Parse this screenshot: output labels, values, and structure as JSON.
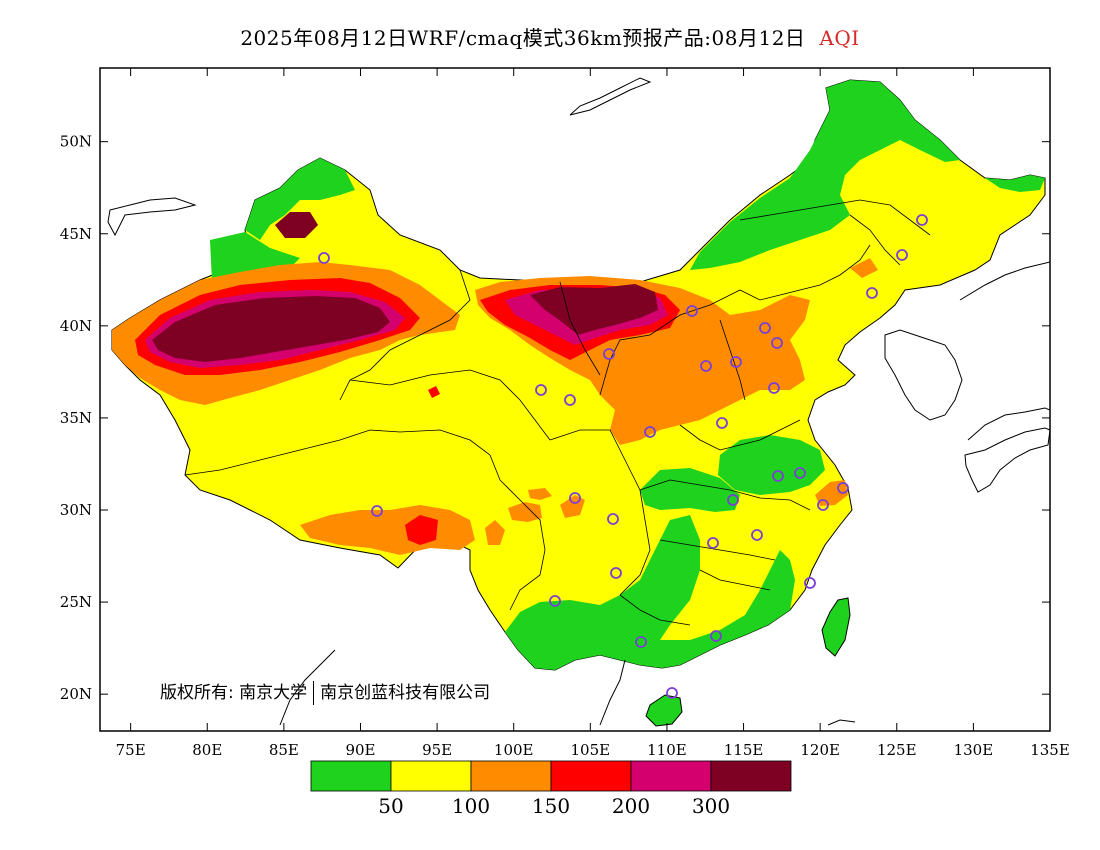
{
  "title": {
    "main": "2025年08月12日WRF/cmaq模式36km预报产品:08月12日",
    "variable": "AQI"
  },
  "map": {
    "lon_range": [
      73,
      135
    ],
    "lat_range": [
      18,
      54
    ],
    "x_ticks": [
      "75E",
      "80E",
      "85E",
      "90E",
      "95E",
      "100E",
      "105E",
      "110E",
      "115E",
      "120E",
      "125E",
      "130E",
      "135E"
    ],
    "y_ticks": [
      "50N",
      "45N",
      "40N",
      "35N",
      "30N",
      "25N",
      "20N"
    ],
    "copyright_prefix": "版权所有:",
    "copyright_org1": "南京大学",
    "copyright_org2": "南京创蓝科技有限公司"
  },
  "legend": {
    "colors": [
      "#1ed21e",
      "#ffff00",
      "#ff8c00",
      "#ff0000",
      "#d3006e",
      "#7e0023"
    ],
    "labels": [
      "50",
      "100",
      "150",
      "200",
      "300"
    ]
  },
  "station_marker_color": "#7b3fd4"
}
